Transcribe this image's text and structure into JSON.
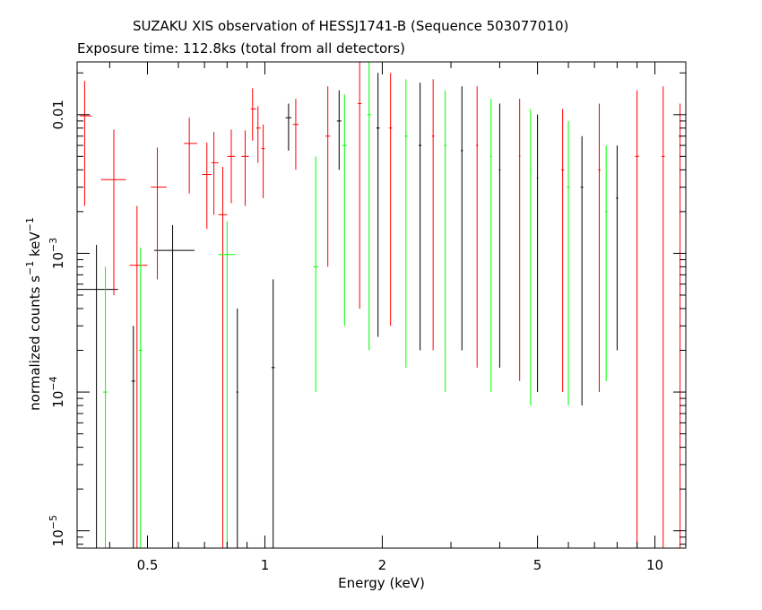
{
  "chart_data": {
    "type": "scatter",
    "title": "SUZAKU XIS observation of HESSJ1741-B (Sequence 503077010)",
    "subtitle": "Exposure time: 112.8ks (total from all detectors)",
    "xlabel": "Energy (keV)",
    "ylabel": "normalized counts s-1 keV-1",
    "xscale": "log",
    "yscale": "log",
    "xlim": [
      0.33,
      12.0
    ],
    "ylim": [
      7.5e-06,
      0.024
    ],
    "x_ticks": [
      "0.5",
      "1",
      "2",
      "5",
      "10"
    ],
    "x_tick_values": [
      0.5,
      1,
      2,
      5,
      10
    ],
    "y_ticks": [
      {
        "value": 1e-05,
        "base": "10",
        "exp": "−5"
      },
      {
        "value": 0.0001,
        "base": "10",
        "exp": "−4"
      },
      {
        "value": 0.001,
        "base": "10",
        "exp": "−3"
      },
      {
        "value": 0.01,
        "base": "0.01",
        "exp": ""
      }
    ],
    "grid": false,
    "legend": "none",
    "series": [
      {
        "color": "#000000",
        "points": [
          {
            "x": 0.37,
            "y": 0.00055,
            "xlo": 0.33,
            "xhi": 0.42,
            "ylo": 7.5e-06,
            "yhi": 0.00115
          },
          {
            "x": 0.46,
            "y": 0.00012,
            "xlo": 0.455,
            "xhi": 0.465,
            "ylo": 7.5e-06,
            "yhi": 0.0003
          },
          {
            "x": 0.58,
            "y": 0.00105,
            "xlo": 0.52,
            "xhi": 0.66,
            "ylo": 7.5e-06,
            "yhi": 0.0016
          },
          {
            "x": 0.85,
            "y": 0.0001,
            "xlo": 0.845,
            "xhi": 0.855,
            "ylo": 7.5e-06,
            "yhi": 0.0004
          },
          {
            "x": 1.05,
            "y": 0.00015,
            "xlo": 1.04,
            "xhi": 1.06,
            "ylo": 7.5e-06,
            "yhi": 0.00065
          },
          {
            "x": 1.15,
            "y": 0.0095,
            "xlo": 1.13,
            "xhi": 1.17,
            "ylo": 0.0055,
            "yhi": 0.012
          },
          {
            "x": 1.55,
            "y": 0.009,
            "xlo": 1.53,
            "xhi": 1.57,
            "ylo": 0.004,
            "yhi": 0.015
          },
          {
            "x": 1.95,
            "y": 0.008,
            "xlo": 1.93,
            "xhi": 1.97,
            "ylo": 0.00025,
            "yhi": 0.02
          },
          {
            "x": 2.5,
            "y": 0.006,
            "xlo": 2.48,
            "xhi": 2.52,
            "ylo": 0.0002,
            "yhi": 0.017
          },
          {
            "x": 3.2,
            "y": 0.0055,
            "xlo": 3.18,
            "xhi": 3.22,
            "ylo": 0.0002,
            "yhi": 0.016
          },
          {
            "x": 4.0,
            "y": 0.004,
            "xlo": 3.98,
            "xhi": 4.02,
            "ylo": 0.00015,
            "yhi": 0.012
          },
          {
            "x": 5.0,
            "y": 0.0035,
            "xlo": 4.98,
            "xhi": 5.02,
            "ylo": 0.0001,
            "yhi": 0.01
          },
          {
            "x": 6.5,
            "y": 0.003,
            "xlo": 6.45,
            "xhi": 6.55,
            "ylo": 8e-05,
            "yhi": 0.007
          },
          {
            "x": 8.0,
            "y": 0.0025,
            "xlo": 7.95,
            "xhi": 8.05,
            "ylo": 0.0002,
            "yhi": 0.006
          }
        ]
      },
      {
        "color": "#ff0000",
        "points": [
          {
            "x": 0.345,
            "y": 0.0098,
            "xlo": 0.335,
            "xhi": 0.36,
            "ylo": 0.0022,
            "yhi": 0.0175
          },
          {
            "x": 0.41,
            "y": 0.0034,
            "xlo": 0.38,
            "xhi": 0.44,
            "ylo": 0.0005,
            "yhi": 0.0078
          },
          {
            "x": 0.47,
            "y": 0.00082,
            "xlo": 0.45,
            "xhi": 0.5,
            "ylo": 7.5e-06,
            "yhi": 0.0022
          },
          {
            "x": 0.53,
            "y": 0.003,
            "xlo": 0.51,
            "xhi": 0.56,
            "ylo": 0.00065,
            "yhi": 0.0058
          },
          {
            "x": 0.64,
            "y": 0.0062,
            "xlo": 0.62,
            "xhi": 0.67,
            "ylo": 0.0027,
            "yhi": 0.0095
          },
          {
            "x": 0.71,
            "y": 0.0037,
            "xlo": 0.69,
            "xhi": 0.73,
            "ylo": 0.0015,
            "yhi": 0.0063
          },
          {
            "x": 0.74,
            "y": 0.0045,
            "xlo": 0.73,
            "xhi": 0.76,
            "ylo": 0.0019,
            "yhi": 0.0075
          },
          {
            "x": 0.78,
            "y": 0.0019,
            "xlo": 0.76,
            "xhi": 0.8,
            "ylo": 7.5e-06,
            "yhi": 0.0042
          },
          {
            "x": 0.82,
            "y": 0.005,
            "xlo": 0.8,
            "xhi": 0.84,
            "ylo": 0.0023,
            "yhi": 0.0078
          },
          {
            "x": 0.89,
            "y": 0.005,
            "xlo": 0.87,
            "xhi": 0.91,
            "ylo": 0.0022,
            "yhi": 0.0077
          },
          {
            "x": 0.93,
            "y": 0.011,
            "xlo": 0.92,
            "xhi": 0.95,
            "ylo": 0.0065,
            "yhi": 0.0155
          },
          {
            "x": 0.96,
            "y": 0.008,
            "xlo": 0.95,
            "xhi": 0.975,
            "ylo": 0.0045,
            "yhi": 0.0115
          },
          {
            "x": 0.99,
            "y": 0.0057,
            "xlo": 0.98,
            "xhi": 1.0,
            "ylo": 0.0025,
            "yhi": 0.0085
          },
          {
            "x": 1.2,
            "y": 0.0085,
            "xlo": 1.18,
            "xhi": 1.22,
            "ylo": 0.004,
            "yhi": 0.013
          },
          {
            "x": 1.45,
            "y": 0.007,
            "xlo": 1.43,
            "xhi": 1.47,
            "ylo": 0.0008,
            "yhi": 0.016
          },
          {
            "x": 1.75,
            "y": 0.012,
            "xlo": 1.73,
            "xhi": 1.77,
            "ylo": 0.0004,
            "yhi": 0.024
          },
          {
            "x": 2.1,
            "y": 0.008,
            "xlo": 2.08,
            "xhi": 2.12,
            "ylo": 0.0003,
            "yhi": 0.02
          },
          {
            "x": 2.7,
            "y": 0.007,
            "xlo": 2.68,
            "xhi": 2.72,
            "ylo": 0.0002,
            "yhi": 0.018
          },
          {
            "x": 3.5,
            "y": 0.006,
            "xlo": 3.48,
            "xhi": 3.52,
            "ylo": 0.00015,
            "yhi": 0.016
          },
          {
            "x": 4.5,
            "y": 0.005,
            "xlo": 4.48,
            "xhi": 4.52,
            "ylo": 0.00012,
            "yhi": 0.013
          },
          {
            "x": 5.8,
            "y": 0.004,
            "xlo": 5.75,
            "xhi": 5.85,
            "ylo": 0.0001,
            "yhi": 0.011
          },
          {
            "x": 7.2,
            "y": 0.004,
            "xlo": 7.15,
            "xhi": 7.25,
            "ylo": 0.0001,
            "yhi": 0.012
          },
          {
            "x": 9.0,
            "y": 0.005,
            "xlo": 8.9,
            "xhi": 9.1,
            "ylo": 7.5e-06,
            "yhi": 0.015
          },
          {
            "x": 10.5,
            "y": 0.005,
            "xlo": 10.4,
            "xhi": 10.6,
            "ylo": 7.5e-06,
            "yhi": 0.016
          },
          {
            "x": 11.6,
            "y": 0.007,
            "xlo": 11.5,
            "xhi": 11.7,
            "ylo": 7.5e-06,
            "yhi": 0.012
          }
        ]
      },
      {
        "color": "#00ff00",
        "points": [
          {
            "x": 0.39,
            "y": 0.0001,
            "xlo": 0.385,
            "xhi": 0.395,
            "ylo": 7.5e-06,
            "yhi": 0.0008
          },
          {
            "x": 0.48,
            "y": 0.0002,
            "xlo": 0.475,
            "xhi": 0.485,
            "ylo": 7.5e-06,
            "yhi": 0.0011
          },
          {
            "x": 0.8,
            "y": 0.00098,
            "xlo": 0.76,
            "xhi": 0.84,
            "ylo": 7.5e-06,
            "yhi": 0.0017
          },
          {
            "x": 1.35,
            "y": 0.0008,
            "xlo": 1.33,
            "xhi": 1.37,
            "ylo": 0.0001,
            "yhi": 0.005
          },
          {
            "x": 1.6,
            "y": 0.006,
            "xlo": 1.58,
            "xhi": 1.62,
            "ylo": 0.0003,
            "yhi": 0.014
          },
          {
            "x": 1.85,
            "y": 0.01,
            "xlo": 1.83,
            "xhi": 1.87,
            "ylo": 0.0002,
            "yhi": 0.024
          },
          {
            "x": 2.3,
            "y": 0.007,
            "xlo": 2.28,
            "xhi": 2.32,
            "ylo": 0.00015,
            "yhi": 0.018
          },
          {
            "x": 2.9,
            "y": 0.006,
            "xlo": 2.88,
            "xhi": 2.92,
            "ylo": 0.0001,
            "yhi": 0.015
          },
          {
            "x": 3.8,
            "y": 0.005,
            "xlo": 3.78,
            "xhi": 3.82,
            "ylo": 0.0001,
            "yhi": 0.013
          },
          {
            "x": 4.8,
            "y": 0.004,
            "xlo": 4.78,
            "xhi": 4.82,
            "ylo": 8e-05,
            "yhi": 0.011
          },
          {
            "x": 6.0,
            "y": 0.003,
            "xlo": 5.95,
            "xhi": 6.05,
            "ylo": 8e-05,
            "yhi": 0.009
          },
          {
            "x": 7.5,
            "y": 0.002,
            "xlo": 7.45,
            "xhi": 7.55,
            "ylo": 0.00012,
            "yhi": 0.006
          }
        ]
      }
    ]
  }
}
